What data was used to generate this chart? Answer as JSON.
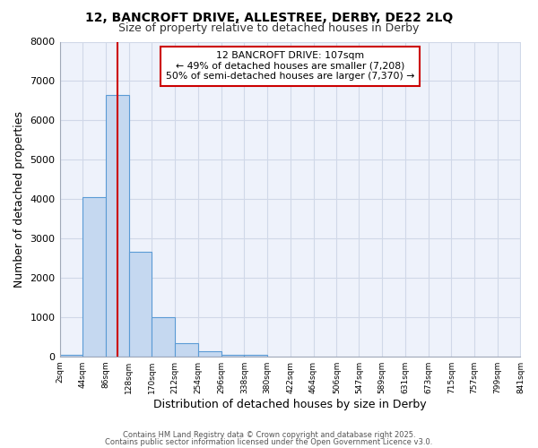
{
  "title1": "12, BANCROFT DRIVE, ALLESTREE, DERBY, DE22 2LQ",
  "title2": "Size of property relative to detached houses in Derby",
  "xlabel": "Distribution of detached houses by size in Derby",
  "ylabel": "Number of detached properties",
  "bin_edges": [
    2,
    44,
    86,
    128,
    170,
    212,
    254,
    296,
    338,
    380,
    422,
    464,
    506,
    547,
    589,
    631,
    673,
    715,
    757,
    799,
    841
  ],
  "bar_heights": [
    50,
    4050,
    6650,
    2650,
    1000,
    330,
    130,
    50,
    50,
    0,
    0,
    0,
    0,
    0,
    0,
    0,
    0,
    0,
    0,
    0
  ],
  "bar_color": "#c5d8f0",
  "bar_edge_color": "#5b9bd5",
  "bg_color": "#ffffff",
  "ax_bg_color": "#eef2fb",
  "grid_color": "#d0d8e8",
  "vline_x": 107,
  "vline_color": "#cc0000",
  "annotation_text": "12 BANCROFT DRIVE: 107sqm\n← 49% of detached houses are smaller (7,208)\n50% of semi-detached houses are larger (7,370) →",
  "annotation_box_color": "#ffffff",
  "annotation_box_edge": "#cc0000",
  "ylim": [
    0,
    8000
  ],
  "yticks": [
    0,
    1000,
    2000,
    3000,
    4000,
    5000,
    6000,
    7000,
    8000
  ],
  "footnote1": "Contains HM Land Registry data © Crown copyright and database right 2025.",
  "footnote2": "Contains public sector information licensed under the Open Government Licence v3.0."
}
